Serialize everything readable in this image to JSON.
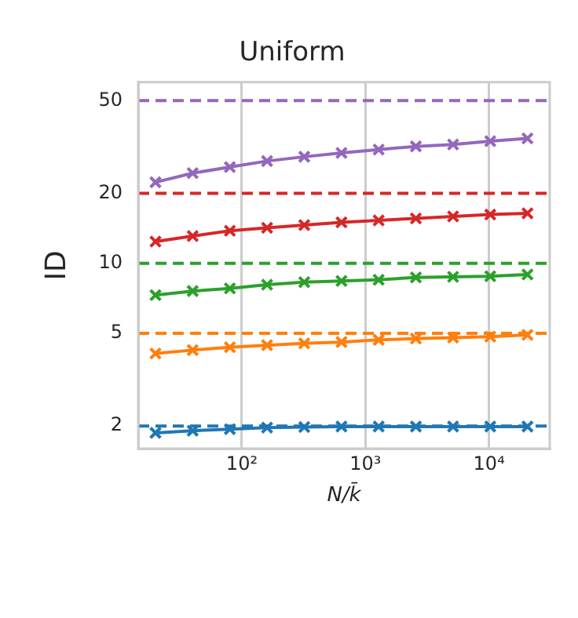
{
  "chart_data": {
    "type": "line",
    "title": "Uniform",
    "xlabel": "N/k̄",
    "ylabel": "ID",
    "log": "xy",
    "grid": "x",
    "marker": "cross",
    "line_style": "solid",
    "legend": false,
    "x": [
      20,
      40,
      80,
      160,
      320,
      640,
      1280,
      2560,
      5120,
      10240,
      20480
    ],
    "xlim": [
      14.5,
      31000
    ],
    "ylim": [
      1.6,
      60
    ],
    "xticks": [
      {
        "value": 100,
        "label": "10²"
      },
      {
        "value": 1000,
        "label": "10³"
      },
      {
        "value": 10000,
        "label": "10⁴"
      }
    ],
    "yticks": [
      2,
      5,
      10,
      20,
      50
    ],
    "series": [
      {
        "color": "#1f77b4",
        "values": [
          1.87,
          1.91,
          1.94,
          1.97,
          1.98,
          1.99,
          1.99,
          1.99,
          1.99,
          1.99,
          1.99
        ]
      },
      {
        "color": "#ff7f0e",
        "values": [
          4.1,
          4.24,
          4.36,
          4.45,
          4.53,
          4.59,
          4.69,
          4.75,
          4.8,
          4.84,
          4.93
        ]
      },
      {
        "color": "#2ca02c",
        "values": [
          7.3,
          7.6,
          7.8,
          8.1,
          8.3,
          8.4,
          8.5,
          8.7,
          8.75,
          8.8,
          8.95
        ]
      },
      {
        "color": "#d62728",
        "values": [
          12.4,
          13.1,
          13.8,
          14.2,
          14.6,
          15.0,
          15.3,
          15.6,
          15.9,
          16.2,
          16.4
        ]
      },
      {
        "color": "#9467bd",
        "values": [
          22.3,
          24.4,
          25.9,
          27.5,
          28.7,
          29.8,
          30.8,
          31.8,
          32.4,
          33.5,
          34.4
        ]
      }
    ],
    "ref_lines": [
      {
        "axis": "y",
        "value": 2,
        "color": "#1f77b4",
        "line_style": "dashed"
      },
      {
        "axis": "y",
        "value": 5,
        "color": "#ff7f0e",
        "line_style": "dashed"
      },
      {
        "axis": "y",
        "value": 10,
        "color": "#2ca02c",
        "line_style": "dashed"
      },
      {
        "axis": "y",
        "value": 20,
        "color": "#d62728",
        "line_style": "dashed"
      },
      {
        "axis": "y",
        "value": 50,
        "color": "#9467bd",
        "line_style": "dashed"
      }
    ]
  }
}
